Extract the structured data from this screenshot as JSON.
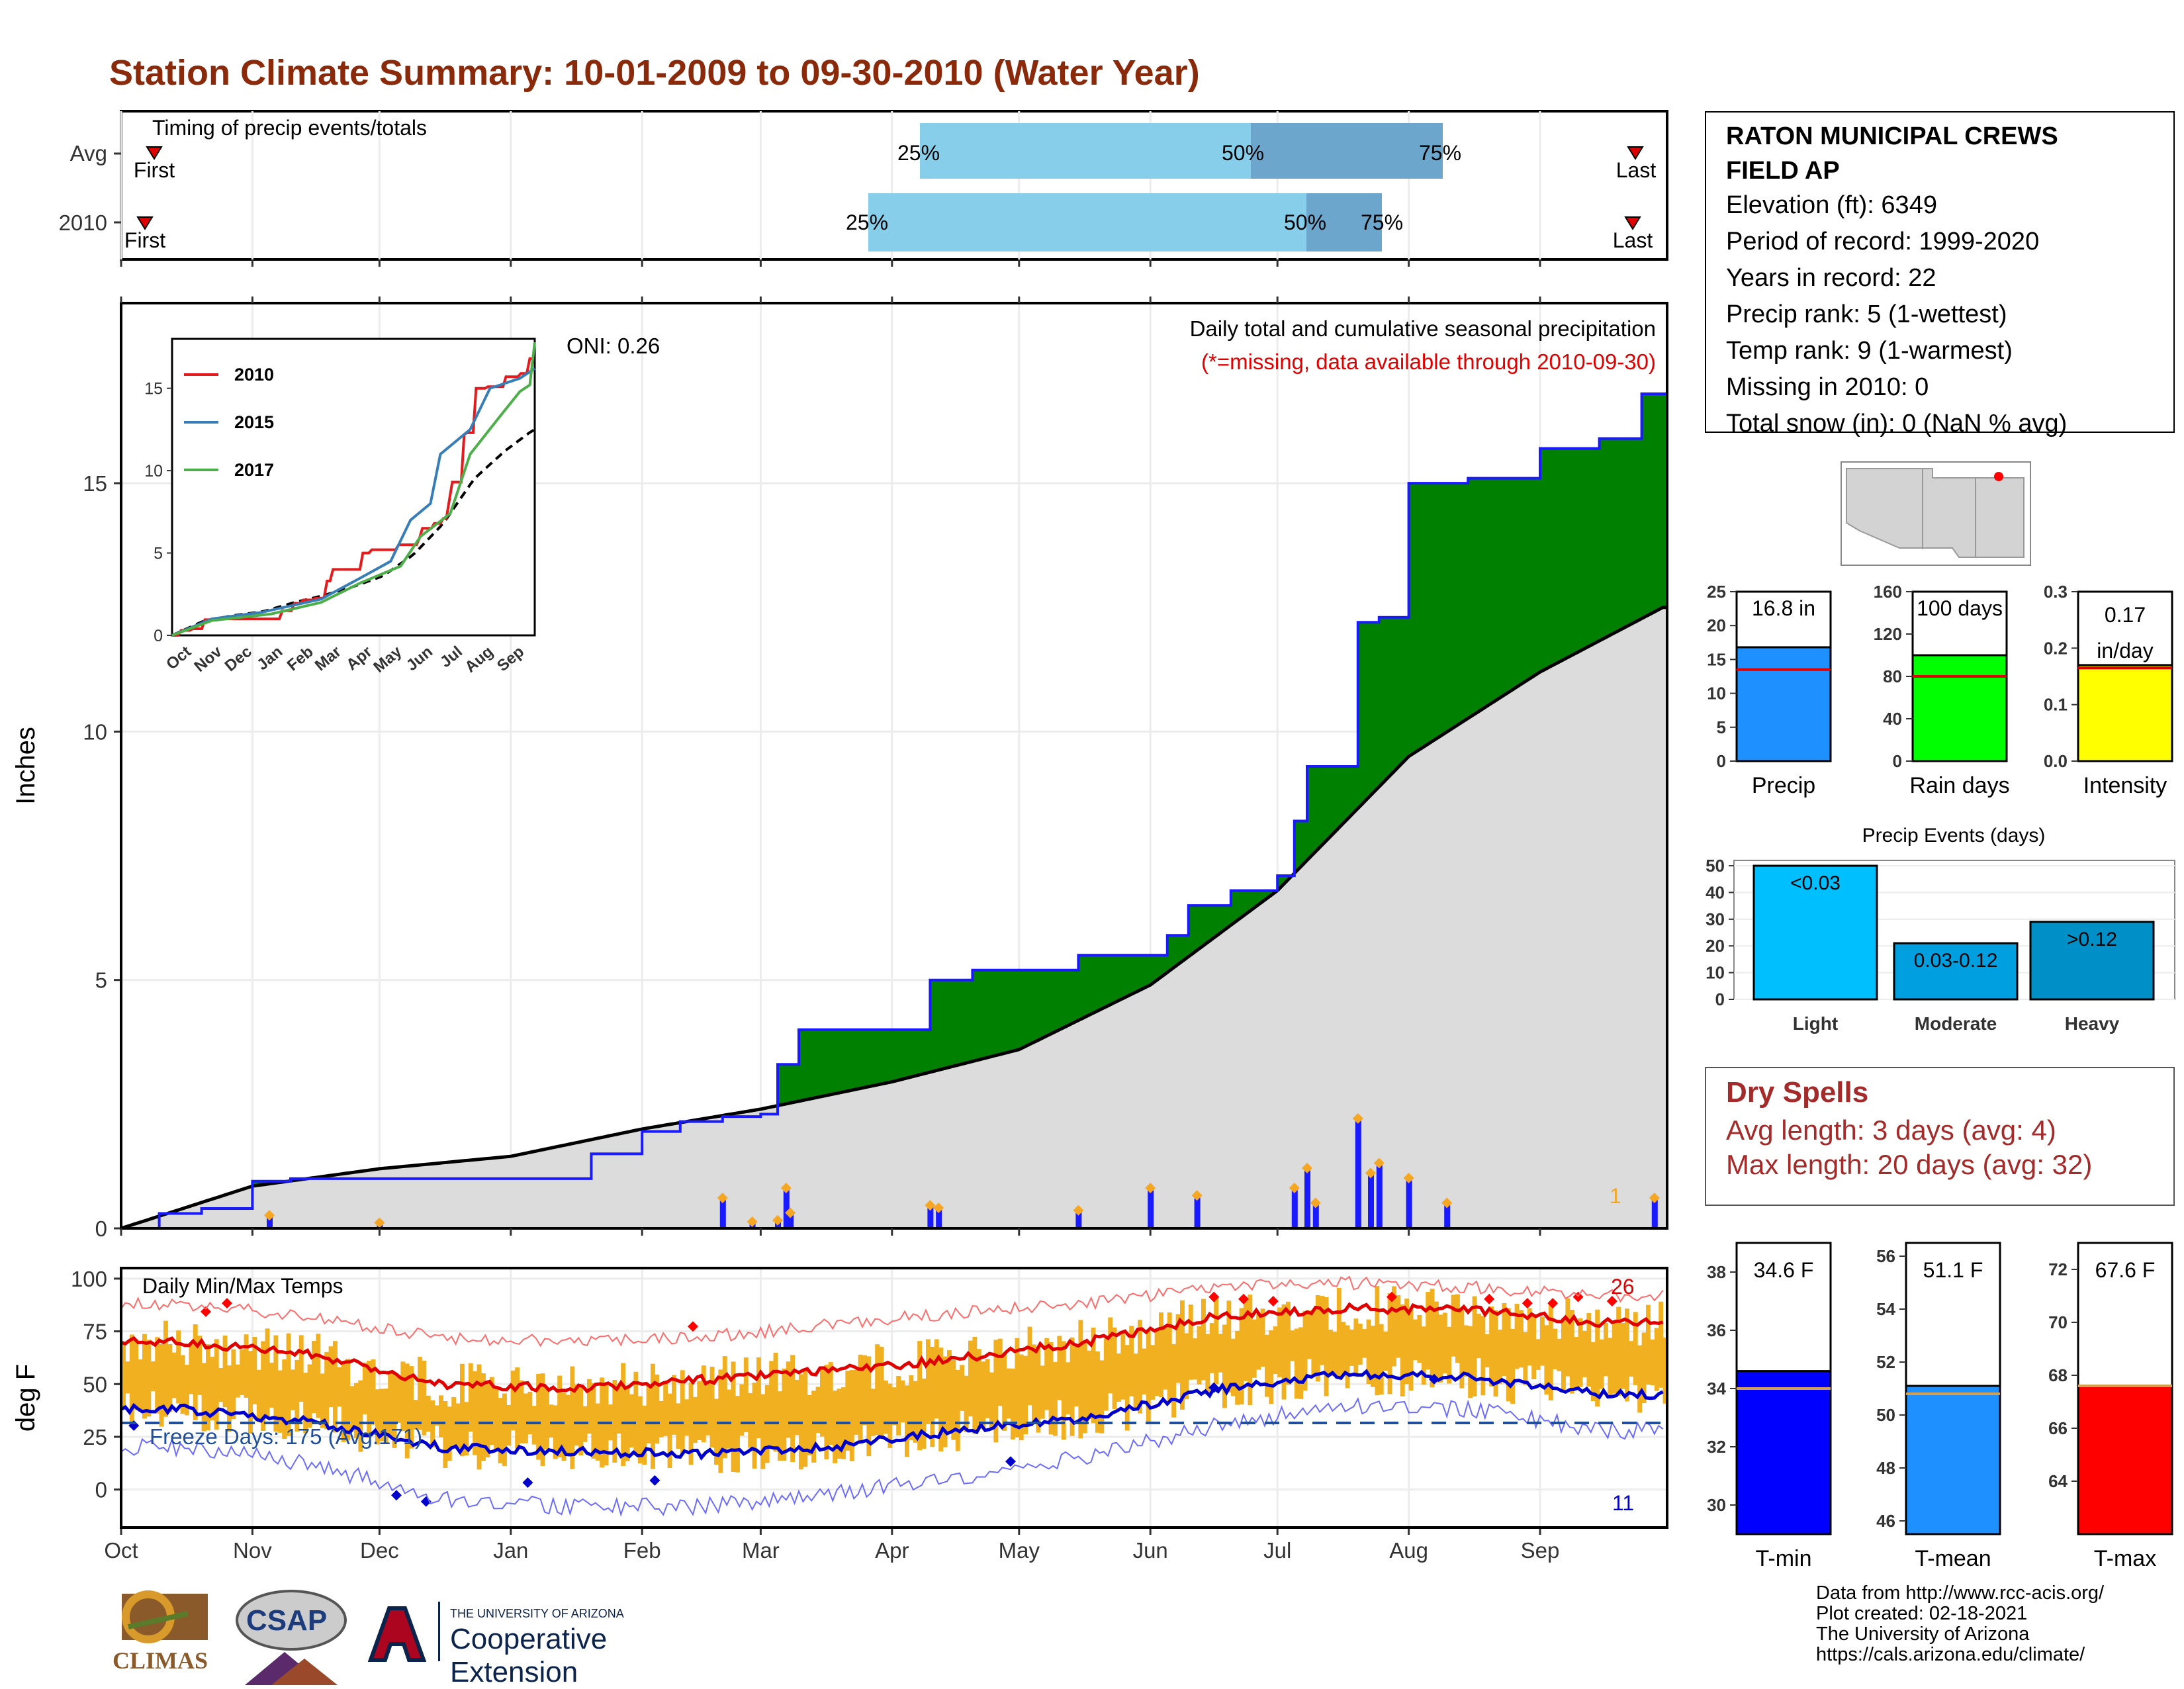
{
  "title": "Station Climate Summary: 10-01-2009 to 09-30-2010 (Water Year)",
  "colors": {
    "title": "#8b2a0a",
    "precip_blue": "#1a1aff",
    "cum_green": "#008000",
    "cum_brown": "#6b4a0f",
    "avg_gray": "#dcdcdc",
    "event_orange": "#f5a623",
    "timing_light": "#87ceeb",
    "timing_dark": "#6ca6cd",
    "temp_bar": "#f0b020",
    "tmax_red": "#e00000",
    "tmin_blue": "#0000cc",
    "tmean_blue": "#1e90ff",
    "rain_green": "#00ff00",
    "intensity_yellow": "#ffff00",
    "light_cyan": "#00bfff",
    "moderate_cyan": "#00a0e0",
    "heavy_cyan": "#0090c8",
    "dry_spell_text": "#a52a2a"
  },
  "timing": {
    "title": "Timing of precip events/totals",
    "rows": [
      {
        "label": "Avg",
        "first": "First",
        "last": "Last",
        "p25": "25%",
        "p50": "50%",
        "p75": "75%"
      },
      {
        "label": "2010",
        "first": "First",
        "last": "Last",
        "p25": "25%",
        "p50": "50%",
        "p75": "75%"
      }
    ]
  },
  "station": {
    "name_line1": "RATON MUNICIPAL CREWS",
    "name_line2": "FIELD AP",
    "elevation": "Elevation (ft): 6349",
    "period": "Period of record: 1999-2020",
    "years": "Years in record: 22",
    "precip_rank": "Precip rank: 5 (1-wettest)",
    "temp_rank": "Temp rank: 9 (1-warmest)",
    "missing": "Missing in 2010: 0",
    "snow": "Total snow (in): 0 (NaN % avg)"
  },
  "precip_panel": {
    "ylabel": "Inches",
    "header": "Daily total and cumulative seasonal precipitation",
    "missing_note": "(*=missing, data available through 2010-09-30)",
    "oni": "ONI: 0.26",
    "last_label": "1"
  },
  "temp_panel": {
    "ylabel": "deg F",
    "title": "Daily Min/Max Temps",
    "freeze": "Freeze Days: 175 (Avg:171)",
    "max_count": "26",
    "min_count": "11"
  },
  "summary_bars": {
    "precip": {
      "label": "Precip",
      "value": 16.8,
      "avg": 13.5,
      "text": "16.8 in",
      "ymax": 25,
      "ticks": [
        "0",
        "5",
        "10",
        "15",
        "20",
        "25"
      ]
    },
    "raindays": {
      "label": "Rain days",
      "value": 100,
      "avg": 80,
      "text": "100 days",
      "ymax": 160,
      "ticks": [
        "0",
        "40",
        "80",
        "120",
        "160"
      ]
    },
    "intensity": {
      "label": "Intensity",
      "value": 0.17,
      "avg": 0.165,
      "text1": "0.17",
      "text2": "in/day",
      "ymax": 0.3,
      "ticks": [
        "0.0",
        "0.1",
        "0.2",
        "0.3"
      ]
    }
  },
  "events": {
    "title": "Precip Events (days)",
    "ticks": [
      "0",
      "10",
      "20",
      "30",
      "40",
      "50"
    ],
    "bars": [
      {
        "label": "Light",
        "value": 50,
        "text": "<0.03"
      },
      {
        "label": "Moderate",
        "value": 21,
        "text": "0.03-0.12"
      },
      {
        "label": "Heavy",
        "value": 29,
        "text": ">0.12"
      }
    ]
  },
  "dry_spells": {
    "title": "Dry Spells",
    "avg": "Avg length: 3 days (avg: 4)",
    "max": "Max length: 20 days (avg: 32)"
  },
  "temp_bars": {
    "tmin": {
      "label": "T-min",
      "value": 34.6,
      "avg": 34.0,
      "text": "34.6 F",
      "ymin": 29,
      "ymax": 39,
      "ticks": [
        "30",
        "32",
        "34",
        "36",
        "38"
      ]
    },
    "tmean": {
      "label": "T-mean",
      "value": 51.1,
      "avg": 50.8,
      "text": "51.1 F",
      "ymin": 45.5,
      "ymax": 56.5,
      "ticks": [
        "46",
        "48",
        "50",
        "52",
        "54",
        "56"
      ]
    },
    "tmax": {
      "label": "T-max",
      "value": 67.6,
      "avg": 67.6,
      "text": "67.6 F",
      "ymin": 62,
      "ymax": 73,
      "ticks": [
        "64",
        "66",
        "68",
        "70",
        "72"
      ]
    }
  },
  "inset": {
    "series": [
      {
        "name": "2010",
        "color": "#e41a1c"
      },
      {
        "name": "2015",
        "color": "#377eb8"
      },
      {
        "name": "2017",
        "color": "#4daf4a"
      }
    ],
    "yticks": [
      "0",
      "5",
      "10",
      "15"
    ],
    "xticks": [
      "Oct",
      "Nov",
      "Dec",
      "Jan",
      "Feb",
      "Mar",
      "Apr",
      "May",
      "Jun",
      "Jul",
      "Aug",
      "Sep"
    ]
  },
  "footer": {
    "line1": "Data from http://www.rcc-acis.org/",
    "line2": "Plot created: 02-18-2021",
    "line3": "The University of Arizona",
    "line4": "https://cals.arizona.edu/climate/",
    "climas": "CLIMAS",
    "csap": "CSAP",
    "ua_small": "THE UNIVERSITY OF ARIZONA",
    "ua_big": "Cooperative Extension"
  },
  "chart_data": [
    {
      "type": "area",
      "title": "Daily total and cumulative seasonal precipitation",
      "xlabel": "",
      "ylabel": "Inches",
      "ylim": [
        0,
        18.5
      ],
      "x_months": [
        "Oct",
        "Nov",
        "Dec",
        "Jan",
        "Feb",
        "Mar",
        "Apr",
        "May",
        "Jun",
        "Jul",
        "Aug",
        "Sep"
      ],
      "series": [
        {
          "name": "cumulative",
          "x": [
            "10-01",
            "10-10",
            "10-20",
            "11-01",
            "11-10",
            "12-01",
            "12-15",
            "01-01",
            "01-20",
            "02-01",
            "02-10",
            "02-20",
            "03-01",
            "03-05",
            "03-10",
            "03-20",
            "04-01",
            "04-10",
            "04-20",
            "05-01",
            "05-15",
            "06-01",
            "06-05",
            "06-10",
            "06-20",
            "07-01",
            "07-05",
            "07-08",
            "07-20",
            "07-25",
            "08-01",
            "08-15",
            "09-01",
            "09-15",
            "09-25",
            "09-30"
          ],
          "values": [
            0.0,
            0.3,
            0.4,
            0.95,
            1.0,
            1.0,
            1.0,
            1.0,
            1.5,
            1.95,
            2.15,
            2.25,
            2.3,
            3.3,
            4.0,
            4.0,
            4.0,
            5.0,
            5.2,
            5.2,
            5.5,
            5.5,
            5.9,
            6.5,
            6.8,
            7.1,
            8.2,
            9.3,
            12.2,
            12.3,
            15.0,
            15.1,
            15.7,
            15.9,
            16.8,
            16.8
          ]
        },
        {
          "name": "average",
          "x": [
            "10-01",
            "11-01",
            "12-01",
            "01-01",
            "02-01",
            "03-01",
            "04-01",
            "05-01",
            "06-01",
            "07-01",
            "08-01",
            "09-01",
            "09-30"
          ],
          "values": [
            0.0,
            0.85,
            1.2,
            1.45,
            2.0,
            2.4,
            2.95,
            3.6,
            4.9,
            6.8,
            9.5,
            11.2,
            12.5
          ]
        }
      ],
      "daily_precip": {
        "x": [
          "11-05",
          "12-01",
          "02-20",
          "02-27",
          "03-05",
          "03-07",
          "03-08",
          "04-10",
          "04-12",
          "05-15",
          "06-01",
          "06-12",
          "07-05",
          "07-08",
          "07-10",
          "07-20",
          "07-23",
          "07-25",
          "08-01",
          "08-10",
          "09-28"
        ],
        "values": [
          0.25,
          0.1,
          0.6,
          0.12,
          0.15,
          0.8,
          0.3,
          0.45,
          0.4,
          0.35,
          0.8,
          0.65,
          0.8,
          1.2,
          0.5,
          2.2,
          1.1,
          1.3,
          1.0,
          0.5,
          0.6
        ]
      }
    },
    {
      "type": "line",
      "title": "Daily Min/Max Temps",
      "ylabel": "deg F",
      "ylim": [
        -18,
        105
      ],
      "x": [
        "Oct",
        "Nov",
        "Dec",
        "Jan",
        "Feb",
        "Mar",
        "Apr",
        "May",
        "Jun",
        "Jul",
        "Aug",
        "Sep"
      ],
      "series": [
        {
          "name": "avg_max",
          "values": [
            70,
            64,
            50,
            48,
            52,
            56,
            62,
            70,
            82,
            86,
            85,
            79
          ]
        },
        {
          "name": "avg_min",
          "values": [
            38,
            32,
            20,
            18,
            17,
            20,
            28,
            34,
            47,
            55,
            53,
            45
          ]
        },
        {
          "name": "record_max",
          "values": [
            88,
            82,
            72,
            70,
            72,
            78,
            84,
            88,
            96,
            98,
            96,
            92
          ]
        },
        {
          "name": "record_min",
          "values": [
            20,
            12,
            -5,
            -8,
            -8,
            -2,
            6,
            16,
            30,
            40,
            38,
            28
          ]
        }
      ]
    },
    {
      "type": "bar",
      "title": "Precip Events (days)",
      "categories": [
        "Light",
        "Moderate",
        "Heavy"
      ],
      "values": [
        50,
        21,
        29
      ]
    }
  ]
}
